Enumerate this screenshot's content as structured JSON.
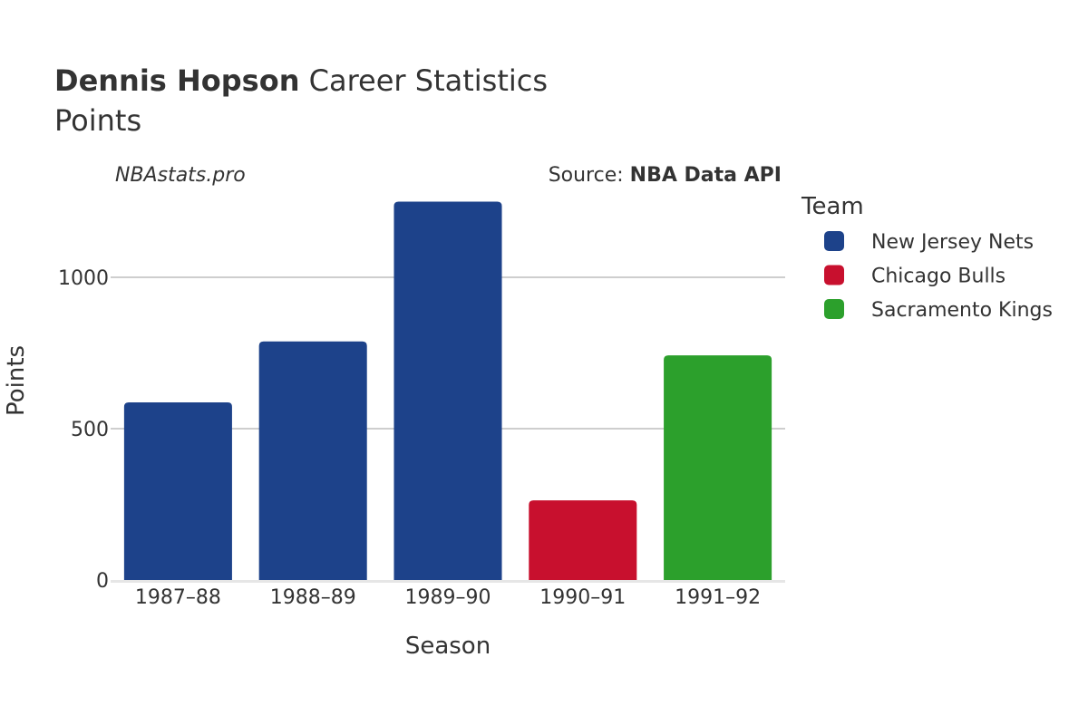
{
  "title": {
    "bold": "Dennis Hopson",
    "rest": " Career Statistics",
    "subtitle": "Points"
  },
  "watermark": "NBAstats.pro",
  "source": {
    "prefix": "Source: ",
    "bold": "NBA Data API"
  },
  "legend": {
    "title": "Team",
    "items": [
      {
        "name": "New Jersey Nets",
        "color": "#1D428A"
      },
      {
        "name": "Chicago Bulls",
        "color": "#C8102E"
      },
      {
        "name": "Sacramento Kings",
        "color": "#2CA02C"
      }
    ]
  },
  "chart_data": {
    "type": "bar",
    "categories": [
      "1987–88",
      "1988–89",
      "1989–90",
      "1990–91",
      "1991–92"
    ],
    "values": [
      587,
      788,
      1250,
      263,
      742
    ],
    "teams": [
      "New Jersey Nets",
      "New Jersey Nets",
      "New Jersey Nets",
      "Chicago Bulls",
      "Sacramento Kings"
    ],
    "xlabel": "Season",
    "ylabel": "Points",
    "ylim": [
      0,
      1300
    ],
    "yticks": [
      0,
      500,
      1000
    ],
    "grid": true,
    "legend_position": "right"
  }
}
